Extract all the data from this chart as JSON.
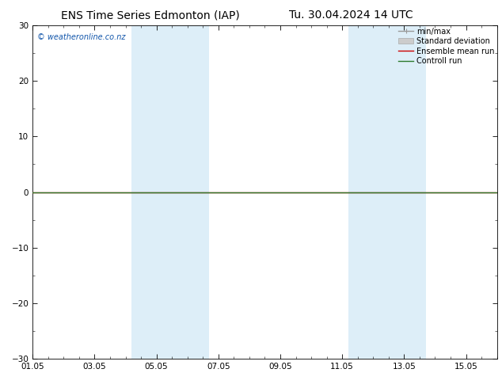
{
  "title_left": "ENS Time Series Edmonton (IAP)",
  "title_right": "Tu. 30.04.2024 14 UTC",
  "ylim": [
    -30,
    30
  ],
  "yticks": [
    -30,
    -20,
    -10,
    0,
    10,
    20,
    30
  ],
  "xlim_start": 0,
  "xlim_end": 15,
  "xtick_labels": [
    "01.05",
    "03.05",
    "05.05",
    "07.05",
    "09.05",
    "11.05",
    "13.05",
    "15.05"
  ],
  "xtick_positions": [
    0,
    2,
    4,
    6,
    8,
    10,
    12,
    14
  ],
  "shade_bands": [
    {
      "xmin": 3.2,
      "xmax": 5.7
    },
    {
      "xmin": 10.2,
      "xmax": 12.7
    }
  ],
  "shade_color": "#ddeef8",
  "watermark": "© weatheronline.co.nz",
  "watermark_color": "#1155aa",
  "control_run_color": "#2d7a2d",
  "ensemble_mean_color": "#cc0000",
  "background_color": "#ffffff",
  "legend_items": [
    {
      "label": "min/max",
      "color": "#999999",
      "lw": 1.0
    },
    {
      "label": "Standard deviation",
      "color": "#cccccc",
      "lw": 5
    },
    {
      "label": "Ensemble mean run",
      "color": "#cc0000",
      "lw": 1.0
    },
    {
      "label": "Controll run",
      "color": "#2d7a2d",
      "lw": 1.0
    }
  ],
  "title_fontsize": 10,
  "tick_fontsize": 7.5,
  "legend_fontsize": 7,
  "watermark_fontsize": 7
}
